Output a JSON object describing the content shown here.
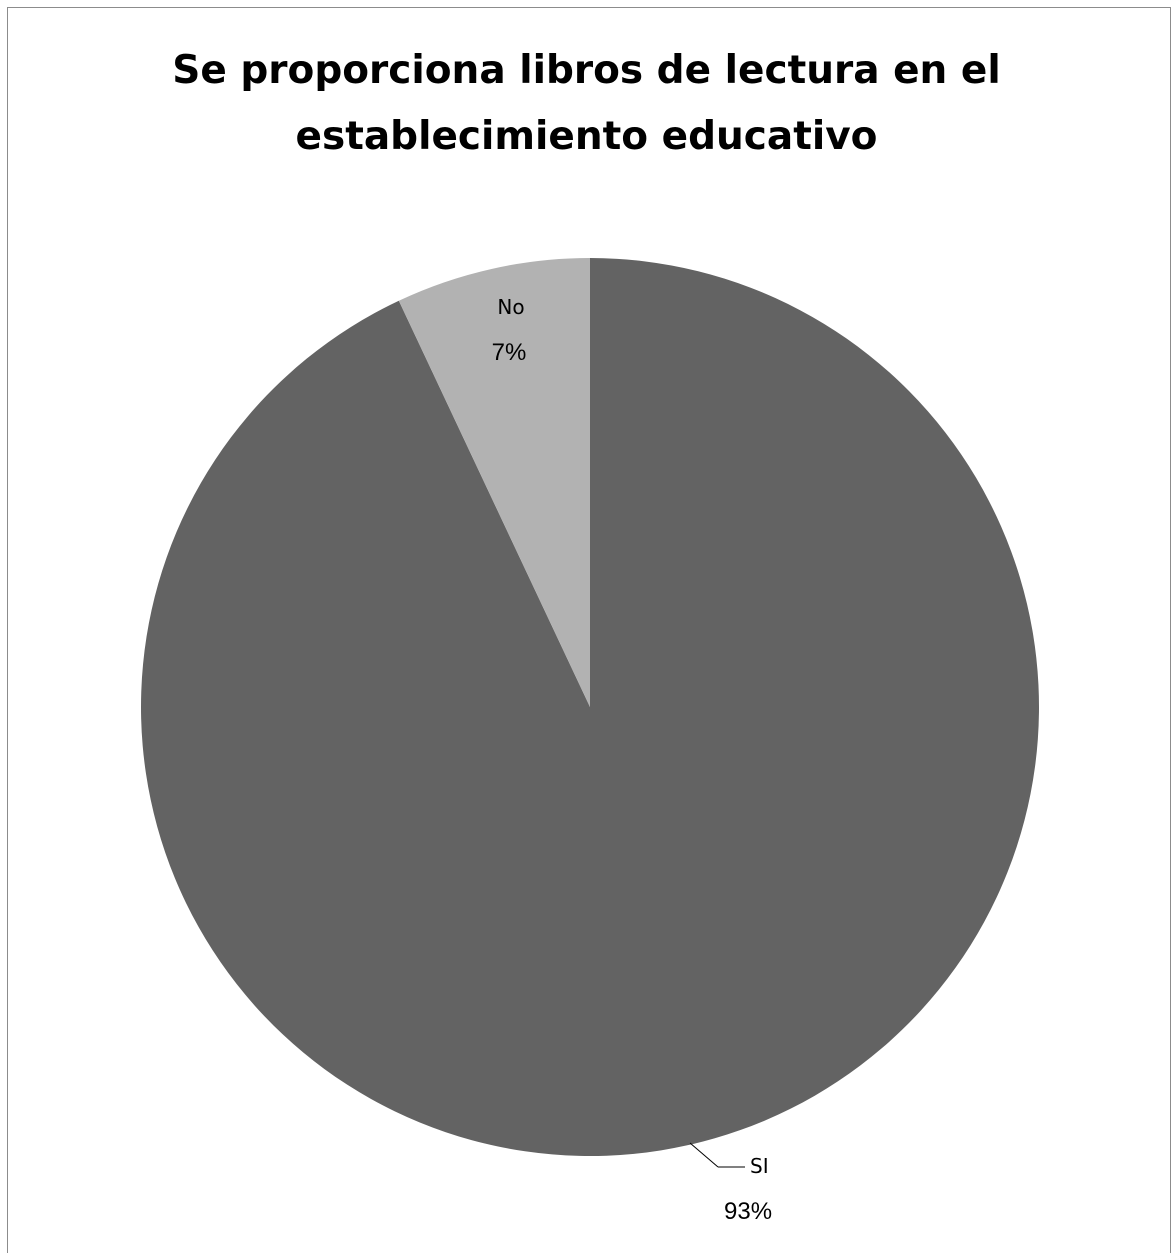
{
  "chart_data": {
    "type": "pie",
    "title_lines": [
      "Se proporciona libros de lectura en el",
      "establecimiento educativo"
    ],
    "slices": [
      {
        "label": "SI",
        "value": 93,
        "value_label": "93%",
        "color": "#636363"
      },
      {
        "label": "No",
        "value": 7,
        "value_label": "7%",
        "color": "#b2b2b2"
      }
    ],
    "start_angle": "12 o'clock",
    "direction": "clockwise",
    "legend": "none",
    "colors": {
      "leader_line": "#000000",
      "border": "#8c8c8c"
    }
  }
}
